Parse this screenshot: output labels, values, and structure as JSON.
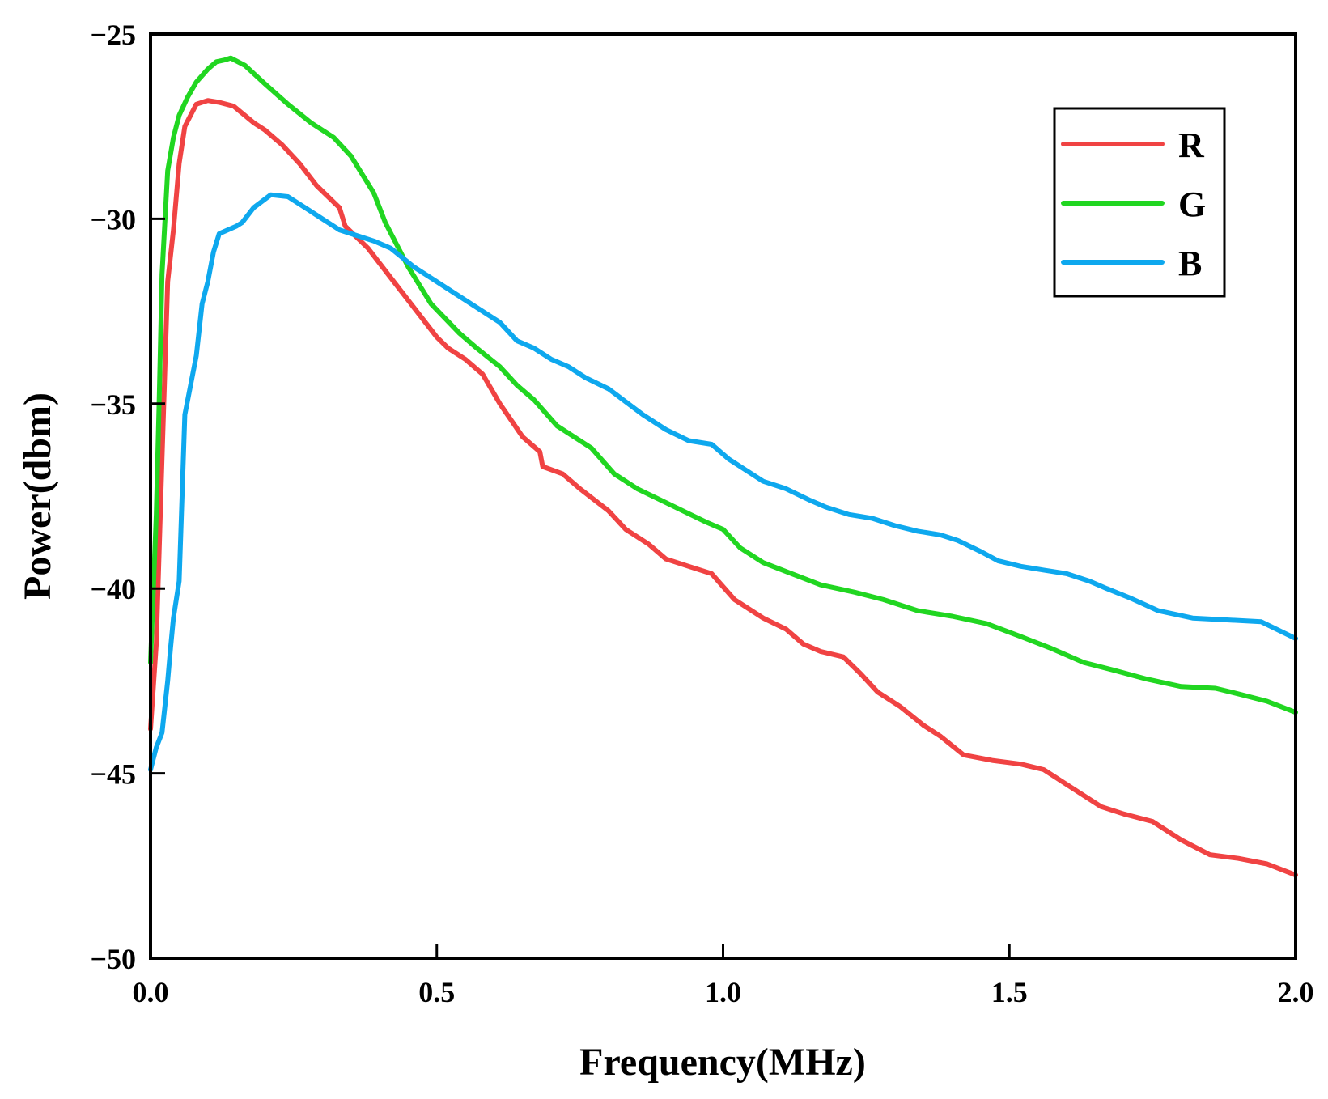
{
  "chart_data": {
    "type": "line",
    "title": "",
    "xlabel": "Frequency(MHz)",
    "ylabel": "Power(dbm)",
    "xlim": [
      0.0,
      2.0
    ],
    "ylim": [
      -50,
      -25
    ],
    "x_ticks": [
      0.0,
      0.5,
      1.0,
      1.5,
      2.0
    ],
    "x_tick_labels": [
      "0.0",
      "0.5",
      "1.0",
      "1.5",
      "2.0"
    ],
    "y_ticks": [
      -25,
      -30,
      -35,
      -40,
      -45,
      -50
    ],
    "y_tick_labels": [
      "−25",
      "−30",
      "−35",
      "−40",
      "−45",
      "−50"
    ],
    "grid": false,
    "legend_position": "top-right",
    "series": [
      {
        "name": "R",
        "color": "#f04343",
        "x": [
          0.0,
          0.01,
          0.02,
          0.03,
          0.04,
          0.05,
          0.06,
          0.08,
          0.1,
          0.12,
          0.145,
          0.18,
          0.2,
          0.23,
          0.26,
          0.29,
          0.33,
          0.34,
          0.38,
          0.42,
          0.46,
          0.5,
          0.52,
          0.55,
          0.58,
          0.61,
          0.65,
          0.68,
          0.685,
          0.72,
          0.75,
          0.8,
          0.83,
          0.87,
          0.9,
          0.94,
          0.98,
          1.02,
          1.07,
          1.11,
          1.14,
          1.17,
          1.21,
          1.24,
          1.27,
          1.31,
          1.35,
          1.38,
          1.42,
          1.47,
          1.52,
          1.56,
          1.61,
          1.66,
          1.7,
          1.75,
          1.8,
          1.85,
          1.9,
          1.95,
          2.0
        ],
        "y": [
          -43.8,
          -41.5,
          -36.5,
          -31.7,
          -30.3,
          -28.5,
          -27.5,
          -26.9,
          -26.8,
          -26.85,
          -26.95,
          -27.4,
          -27.6,
          -28.0,
          -28.5,
          -29.1,
          -29.7,
          -30.2,
          -30.8,
          -31.6,
          -32.4,
          -33.2,
          -33.5,
          -33.8,
          -34.2,
          -35.0,
          -35.9,
          -36.3,
          -36.7,
          -36.9,
          -37.3,
          -37.9,
          -38.4,
          -38.8,
          -39.2,
          -39.4,
          -39.6,
          -40.3,
          -40.8,
          -41.1,
          -41.5,
          -41.7,
          -41.85,
          -42.3,
          -42.8,
          -43.2,
          -43.7,
          -44.0,
          -44.5,
          -44.65,
          -44.75,
          -44.9,
          -45.4,
          -45.9,
          -46.1,
          -46.3,
          -46.8,
          -47.2,
          -47.3,
          -47.45,
          -47.75
        ]
      },
      {
        "name": "G",
        "color": "#21d621",
        "x": [
          0.0,
          0.01,
          0.015,
          0.02,
          0.03,
          0.04,
          0.05,
          0.065,
          0.08,
          0.1,
          0.115,
          0.13,
          0.14,
          0.165,
          0.2,
          0.24,
          0.28,
          0.32,
          0.35,
          0.39,
          0.41,
          0.45,
          0.49,
          0.54,
          0.57,
          0.61,
          0.64,
          0.67,
          0.71,
          0.77,
          0.81,
          0.85,
          0.89,
          0.93,
          0.97,
          1.0,
          1.03,
          1.07,
          1.12,
          1.17,
          1.23,
          1.28,
          1.34,
          1.4,
          1.46,
          1.52,
          1.57,
          1.63,
          1.68,
          1.74,
          1.8,
          1.86,
          1.9,
          1.95,
          2.0
        ],
        "y": [
          -42.0,
          -38.0,
          -35.0,
          -31.5,
          -28.7,
          -27.8,
          -27.2,
          -26.7,
          -26.3,
          -25.95,
          -25.75,
          -25.7,
          -25.65,
          -25.85,
          -26.35,
          -26.9,
          -27.4,
          -27.8,
          -28.3,
          -29.3,
          -30.1,
          -31.3,
          -32.3,
          -33.1,
          -33.5,
          -34.0,
          -34.5,
          -34.9,
          -35.6,
          -36.2,
          -36.9,
          -37.3,
          -37.6,
          -37.9,
          -38.2,
          -38.4,
          -38.9,
          -39.3,
          -39.6,
          -39.9,
          -40.1,
          -40.3,
          -40.6,
          -40.75,
          -40.95,
          -41.3,
          -41.6,
          -42.0,
          -42.2,
          -42.45,
          -42.65,
          -42.7,
          -42.85,
          -43.05,
          -43.35
        ]
      },
      {
        "name": "B",
        "color": "#0ea8ee",
        "x": [
          0.0,
          0.01,
          0.02,
          0.025,
          0.03,
          0.035,
          0.04,
          0.05,
          0.06,
          0.08,
          0.09,
          0.1,
          0.11,
          0.12,
          0.15,
          0.16,
          0.18,
          0.21,
          0.24,
          0.26,
          0.29,
          0.33,
          0.36,
          0.39,
          0.42,
          0.46,
          0.49,
          0.53,
          0.56,
          0.59,
          0.61,
          0.64,
          0.67,
          0.7,
          0.73,
          0.76,
          0.8,
          0.83,
          0.86,
          0.9,
          0.94,
          0.98,
          1.01,
          1.04,
          1.07,
          1.11,
          1.15,
          1.18,
          1.22,
          1.26,
          1.3,
          1.34,
          1.38,
          1.41,
          1.45,
          1.48,
          1.52,
          1.56,
          1.6,
          1.64,
          1.67,
          1.71,
          1.76,
          1.82,
          1.88,
          1.94,
          2.0
        ],
        "y": [
          -44.9,
          -44.3,
          -43.9,
          -43.2,
          -42.5,
          -41.6,
          -40.8,
          -39.8,
          -35.3,
          -33.7,
          -32.3,
          -31.7,
          -30.9,
          -30.4,
          -30.2,
          -30.1,
          -29.7,
          -29.35,
          -29.4,
          -29.6,
          -29.9,
          -30.3,
          -30.45,
          -30.6,
          -30.8,
          -31.3,
          -31.6,
          -32.0,
          -32.3,
          -32.6,
          -32.8,
          -33.3,
          -33.5,
          -33.8,
          -34.0,
          -34.3,
          -34.6,
          -34.95,
          -35.3,
          -35.7,
          -36.0,
          -36.1,
          -36.5,
          -36.8,
          -37.1,
          -37.3,
          -37.6,
          -37.8,
          -38.0,
          -38.1,
          -38.3,
          -38.45,
          -38.55,
          -38.7,
          -39.0,
          -39.25,
          -39.4,
          -39.5,
          -39.6,
          -39.8,
          -40.0,
          -40.25,
          -40.6,
          -40.8,
          -40.85,
          -40.9,
          -41.35
        ]
      }
    ]
  }
}
